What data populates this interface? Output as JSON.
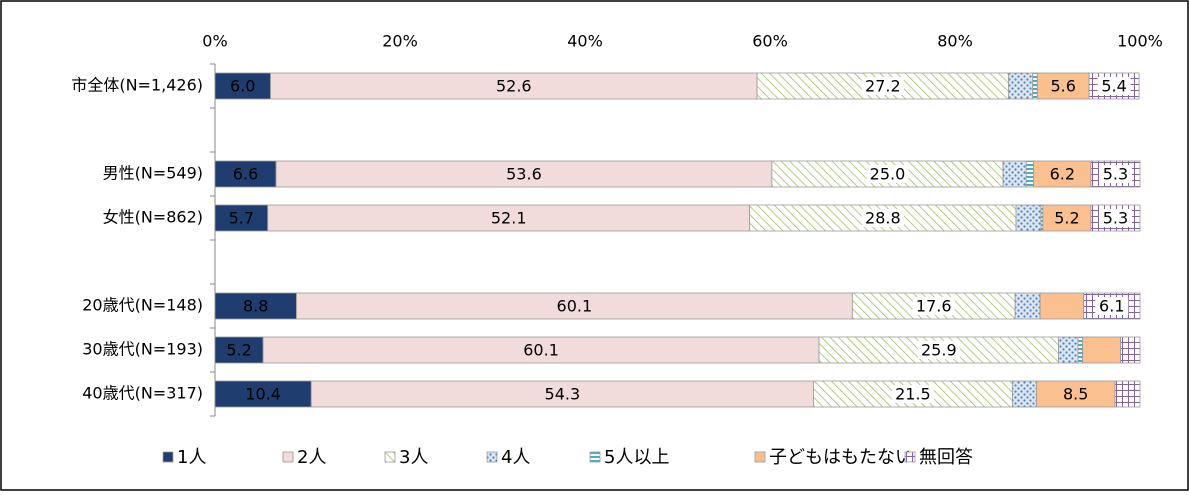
{
  "chart_data": {
    "type": "stacked-bar-horizontal",
    "categories": [
      "市全体(N=1,426)",
      null,
      "男性(N=549)",
      "女性(N=862)",
      null,
      "20歳代(N=148)",
      "30歳代(N=193)",
      "40歳代(N=317)"
    ],
    "xlim": [
      0,
      100
    ],
    "xticks": [
      {
        "value": 0,
        "label": "0%"
      },
      {
        "value": 20,
        "label": "20%"
      },
      {
        "value": 40,
        "label": "40%"
      },
      {
        "value": 60,
        "label": "60%"
      },
      {
        "value": 80,
        "label": "80%"
      },
      {
        "value": 100,
        "label": "100%"
      }
    ],
    "series": [
      {
        "name": "1人",
        "color": "#1f3d6e",
        "values": [
          6.0,
          null,
          6.6,
          5.7,
          null,
          8.8,
          5.2,
          10.4
        ],
        "value_labels": [
          "6.0",
          null,
          "6.6",
          "5.7",
          null,
          "8.8",
          "5.2",
          "10.4"
        ]
      },
      {
        "name": "2人",
        "color": "#f2dcdb",
        "values": [
          52.6,
          null,
          53.6,
          52.1,
          null,
          60.1,
          60.1,
          54.3
        ],
        "value_labels": [
          "52.6",
          null,
          "53.6",
          "52.1",
          null,
          "60.1",
          "60.1",
          "54.3"
        ]
      },
      {
        "name": "3人",
        "color": "#c4d79b",
        "values": [
          27.2,
          null,
          25.0,
          28.8,
          null,
          17.6,
          25.9,
          21.5
        ],
        "value_labels": [
          "27.2",
          null,
          "25.0",
          "28.8",
          null,
          "17.6",
          "25.9",
          "21.5"
        ]
      },
      {
        "name": "4人",
        "color": "#95b3d7",
        "values": [
          2.6,
          null,
          2.5,
          2.7,
          null,
          2.7,
          2.1,
          2.6
        ],
        "value_labels": [
          null,
          null,
          null,
          null,
          null,
          null,
          null,
          null
        ]
      },
      {
        "name": "5人以上",
        "color": "#4bacc6",
        "values": [
          0.5,
          null,
          0.8,
          0.2,
          null,
          0,
          0.5,
          0
        ],
        "value_labels": [
          null,
          null,
          null,
          null,
          null,
          null,
          null,
          null
        ]
      },
      {
        "name": "子どもはもたない",
        "color": "#fac090",
        "values": [
          5.6,
          null,
          6.2,
          5.2,
          null,
          4.7,
          4.1,
          8.5
        ],
        "value_labels": [
          "5.6",
          null,
          "6.2",
          "5.2",
          null,
          null,
          null,
          "8.5"
        ]
      },
      {
        "name": "無回答",
        "color": "#b3a2c7",
        "values": [
          5.4,
          null,
          5.3,
          5.3,
          null,
          6.1,
          2.1,
          2.7
        ],
        "value_labels": [
          "5.4",
          null,
          "5.3",
          "5.3",
          null,
          "6.1",
          null,
          null
        ]
      }
    ]
  }
}
